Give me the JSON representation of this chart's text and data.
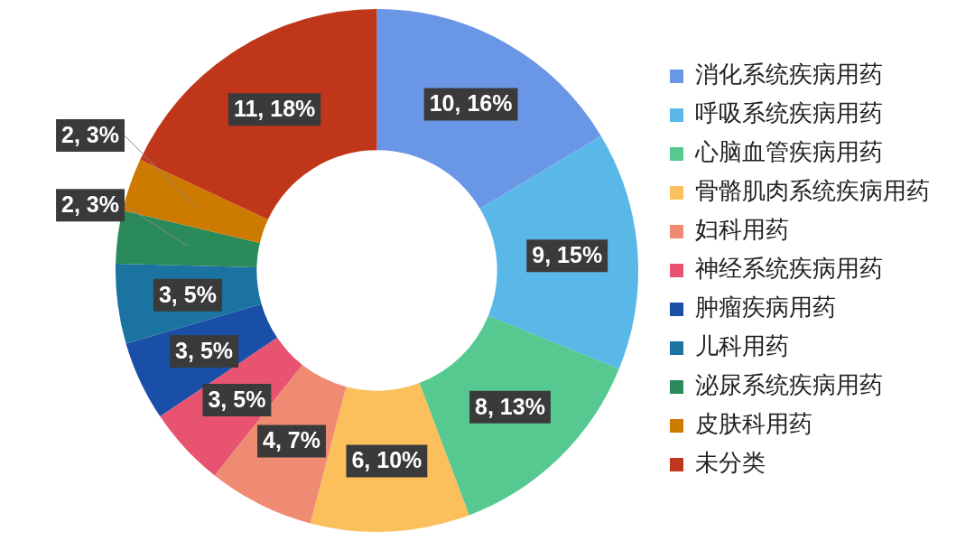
{
  "chart_data": {
    "type": "donut",
    "categories": [
      "消化系统疾病用药",
      "呼吸系统疾病用药",
      "心脑血管疾病用药",
      "骨骼肌肉系统疾病用药",
      "妇科用药",
      "神经系统疾病用药",
      "肿瘤疾病用药",
      "儿科用药",
      "泌尿系统疾病用药",
      "皮肤科用药",
      "未分类"
    ],
    "values": [
      10,
      9,
      8,
      6,
      4,
      3,
      3,
      3,
      2,
      2,
      11
    ],
    "colors": [
      "#6a96e6",
      "#5ab8e8",
      "#55c98f",
      "#fbbf5c",
      "#f08b73",
      "#e85470",
      "#1a4fa8",
      "#1a73a0",
      "#2a8a5a",
      "#cc7a00",
      "#c0361a"
    ],
    "value_labels": [
      "10, 16%",
      "9, 15%",
      "8, 13%",
      "6, 10%",
      "4, 7%",
      "3, 5%",
      "3, 5%",
      "3, 5%",
      "2, 3%",
      "2, 3%",
      "11, 18%"
    ],
    "legend": "right"
  }
}
